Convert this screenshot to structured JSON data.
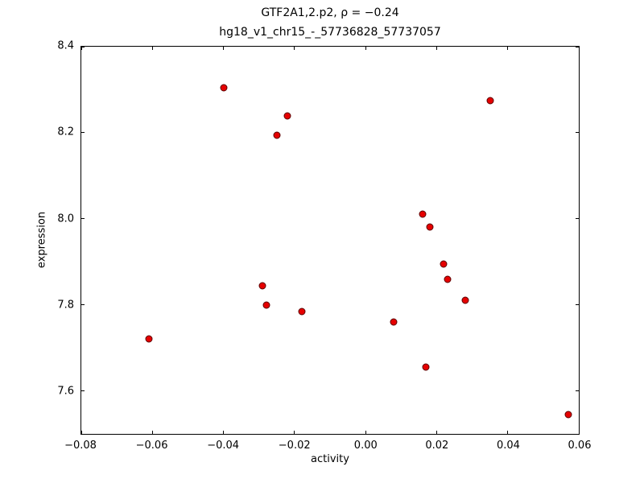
{
  "chart_data": {
    "type": "scatter",
    "title": "GTF2A1,2.p2, ρ = −0.24",
    "subtitle": "hg18_v1_chr15_-_57736828_57737057",
    "xlabel": "activity",
    "ylabel": "expression",
    "xlim": [
      -0.08,
      0.06
    ],
    "ylim": [
      7.5,
      8.4
    ],
    "grid": false,
    "x_ticks": [
      -0.08,
      -0.06,
      -0.04,
      -0.02,
      0.0,
      0.02,
      0.04,
      0.06
    ],
    "x_tick_labels": [
      "−0.08",
      "−0.06",
      "−0.04",
      "−0.02",
      "0.00",
      "0.02",
      "0.04",
      "0.06"
    ],
    "y_ticks": [
      7.6,
      7.8,
      8.0,
      8.2,
      8.4
    ],
    "y_tick_labels": [
      "7.6",
      "7.8",
      "8.0",
      "8.2",
      "8.4"
    ],
    "marker": {
      "fill": "#e60000",
      "edge": "#5a0000",
      "size": 9
    },
    "points": [
      {
        "x": -0.061,
        "y": 7.72
      },
      {
        "x": -0.04,
        "y": 8.305
      },
      {
        "x": -0.029,
        "y": 7.845
      },
      {
        "x": -0.028,
        "y": 7.8
      },
      {
        "x": -0.025,
        "y": 8.195
      },
      {
        "x": -0.022,
        "y": 8.24
      },
      {
        "x": -0.018,
        "y": 7.785
      },
      {
        "x": 0.008,
        "y": 7.76
      },
      {
        "x": 0.016,
        "y": 8.01
      },
      {
        "x": 0.017,
        "y": 7.655
      },
      {
        "x": 0.018,
        "y": 7.98
      },
      {
        "x": 0.022,
        "y": 7.895
      },
      {
        "x": 0.023,
        "y": 7.86
      },
      {
        "x": 0.028,
        "y": 7.81
      },
      {
        "x": 0.035,
        "y": 8.275
      },
      {
        "x": 0.057,
        "y": 7.545
      }
    ]
  }
}
